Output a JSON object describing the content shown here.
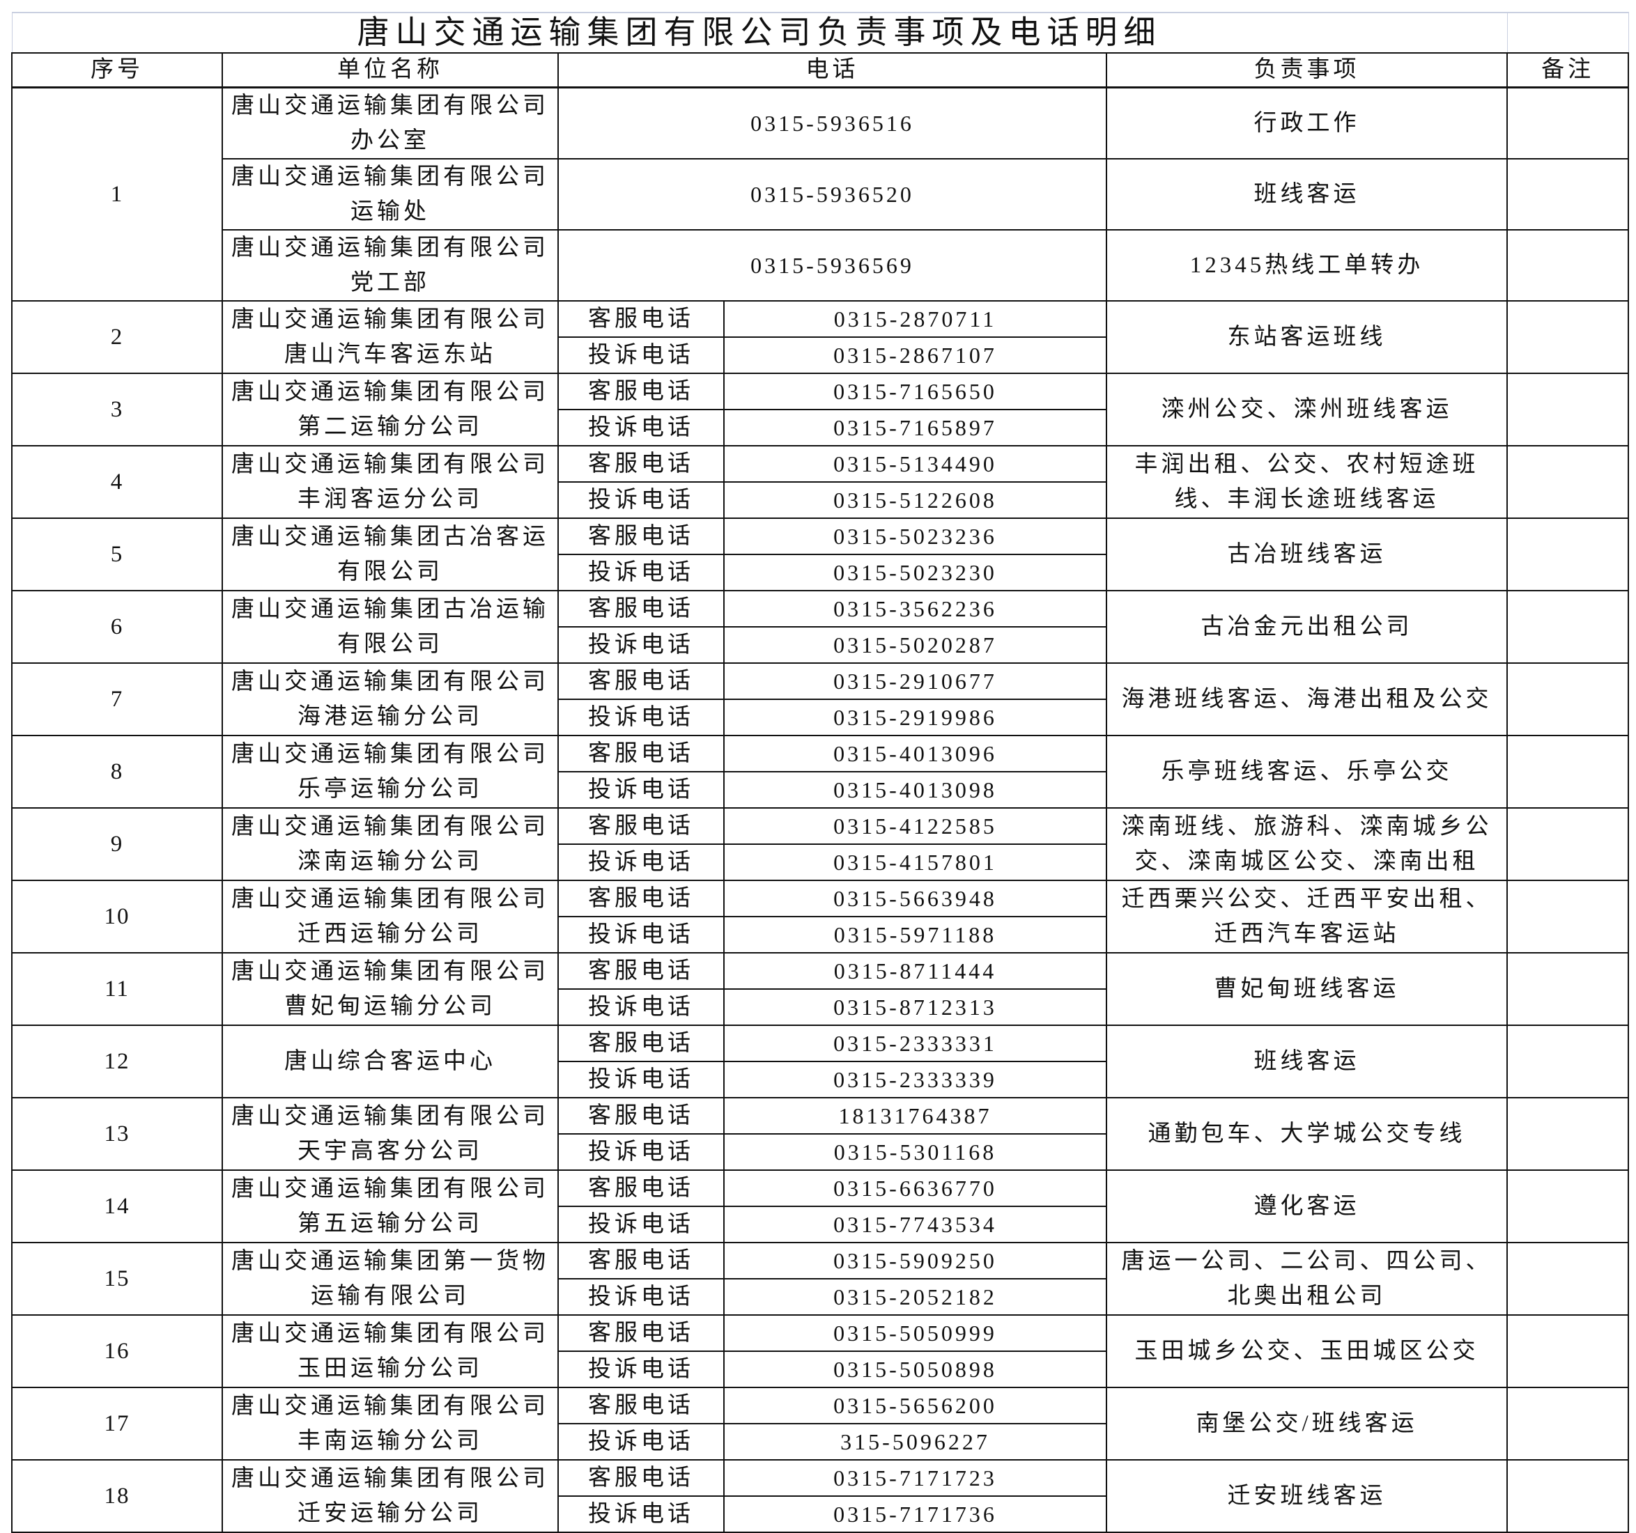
{
  "title": "唐山交通运输集团有限公司负责事项及电话明细",
  "headers": {
    "seq": "序号",
    "unit": "单位名称",
    "phone": "电话",
    "matter": "负责事项",
    "remark": "备注"
  },
  "group1": {
    "seq": "1",
    "entries": [
      {
        "unit": "唐山交通运输集团有限公司办公室",
        "phone": "0315-5936516",
        "matter": "行政工作"
      },
      {
        "unit": "唐山交通运输集团有限公司运输处",
        "phone": "0315-5936520",
        "matter": "班线客运"
      },
      {
        "unit": "唐山交通运输集团有限公司党工部",
        "phone": "0315-5936569",
        "matter": "12345热线工单转办"
      }
    ]
  },
  "phone_types": {
    "service": "客服电话",
    "complaint": "投诉电话"
  },
  "rows": [
    {
      "seq": "2",
      "unit": "唐山交通运输集团有限公司唐山汽车客运东站",
      "service": "0315-2870711",
      "complaint": "0315-2867107",
      "matter": "东站客运班线"
    },
    {
      "seq": "3",
      "unit": "唐山交通运输集团有限公司第二运输分公司",
      "service": "0315-7165650",
      "complaint": "0315-7165897",
      "matter": "滦州公交、滦州班线客运"
    },
    {
      "seq": "4",
      "unit": "唐山交通运输集团有限公司丰润客运分公司",
      "service": "0315-5134490",
      "complaint": "0315-5122608",
      "matter": "丰润出租、公交、农村短途班线、丰润长途班线客运"
    },
    {
      "seq": "5",
      "unit": "唐山交通运输集团古冶客运有限公司",
      "service": "0315-5023236",
      "complaint": "0315-5023230",
      "matter": "古冶班线客运"
    },
    {
      "seq": "6",
      "unit": "唐山交通运输集团古冶运输有限公司",
      "service": "0315-3562236",
      "complaint": "0315-5020287",
      "matter": "古冶金元出租公司"
    },
    {
      "seq": "7",
      "unit": "唐山交通运输集团有限公司海港运输分公司",
      "service": "0315-2910677",
      "complaint": "0315-2919986",
      "matter": "海港班线客运、海港出租及公交"
    },
    {
      "seq": "8",
      "unit": "唐山交通运输集团有限公司乐亭运输分公司",
      "service": "0315-4013096",
      "complaint": "0315-4013098",
      "matter": "乐亭班线客运、乐亭公交"
    },
    {
      "seq": "9",
      "unit": "唐山交通运输集团有限公司滦南运输分公司",
      "service": "0315-4122585",
      "complaint": "0315-4157801",
      "matter": "滦南班线、旅游科、滦南城乡公交、滦南城区公交、滦南出租"
    },
    {
      "seq": "10",
      "unit": "唐山交通运输集团有限公司迁西运输分公司",
      "service": "0315-5663948",
      "complaint": "0315-5971188",
      "matter": "迁西栗兴公交、迁西平安出租、迁西汽车客运站"
    },
    {
      "seq": "11",
      "unit": "唐山交通运输集团有限公司曹妃甸运输分公司",
      "service": "0315-8711444",
      "complaint": "0315-8712313",
      "matter": "曹妃甸班线客运"
    },
    {
      "seq": "12",
      "unit": "唐山综合客运中心",
      "service": "0315-2333331",
      "complaint": "0315-2333339",
      "matter": "班线客运"
    },
    {
      "seq": "13",
      "unit": "唐山交通运输集团有限公司天宇高客分公司",
      "service": "18131764387",
      "complaint": "0315-5301168",
      "matter": "通勤包车、大学城公交专线"
    },
    {
      "seq": "14",
      "unit": "唐山交通运输集团有限公司第五运输分公司",
      "service": "0315-6636770",
      "complaint": "0315-7743534",
      "matter": "遵化客运"
    },
    {
      "seq": "15",
      "unit": "唐山交通运输集团第一货物运输有限公司",
      "service": "0315-5909250",
      "complaint": "0315-2052182",
      "matter": "唐运一公司、二公司、四公司、北奥出租公司"
    },
    {
      "seq": "16",
      "unit": "唐山交通运输集团有限公司玉田运输分公司",
      "service": "0315-5050999",
      "complaint": "0315-5050898",
      "matter": "玉田城乡公交、玉田城区公交"
    },
    {
      "seq": "17",
      "unit": "唐山交通运输集团有限公司丰南运输分公司",
      "service": "0315-5656200",
      "complaint": "315-5096227",
      "matter": "南堡公交/班线客运"
    },
    {
      "seq": "18",
      "unit": "唐山交通运输集团有限公司迁安运输分公司",
      "service": "0315-7171723",
      "complaint": "0315-7171736",
      "matter": "迁安班线客运"
    }
  ]
}
